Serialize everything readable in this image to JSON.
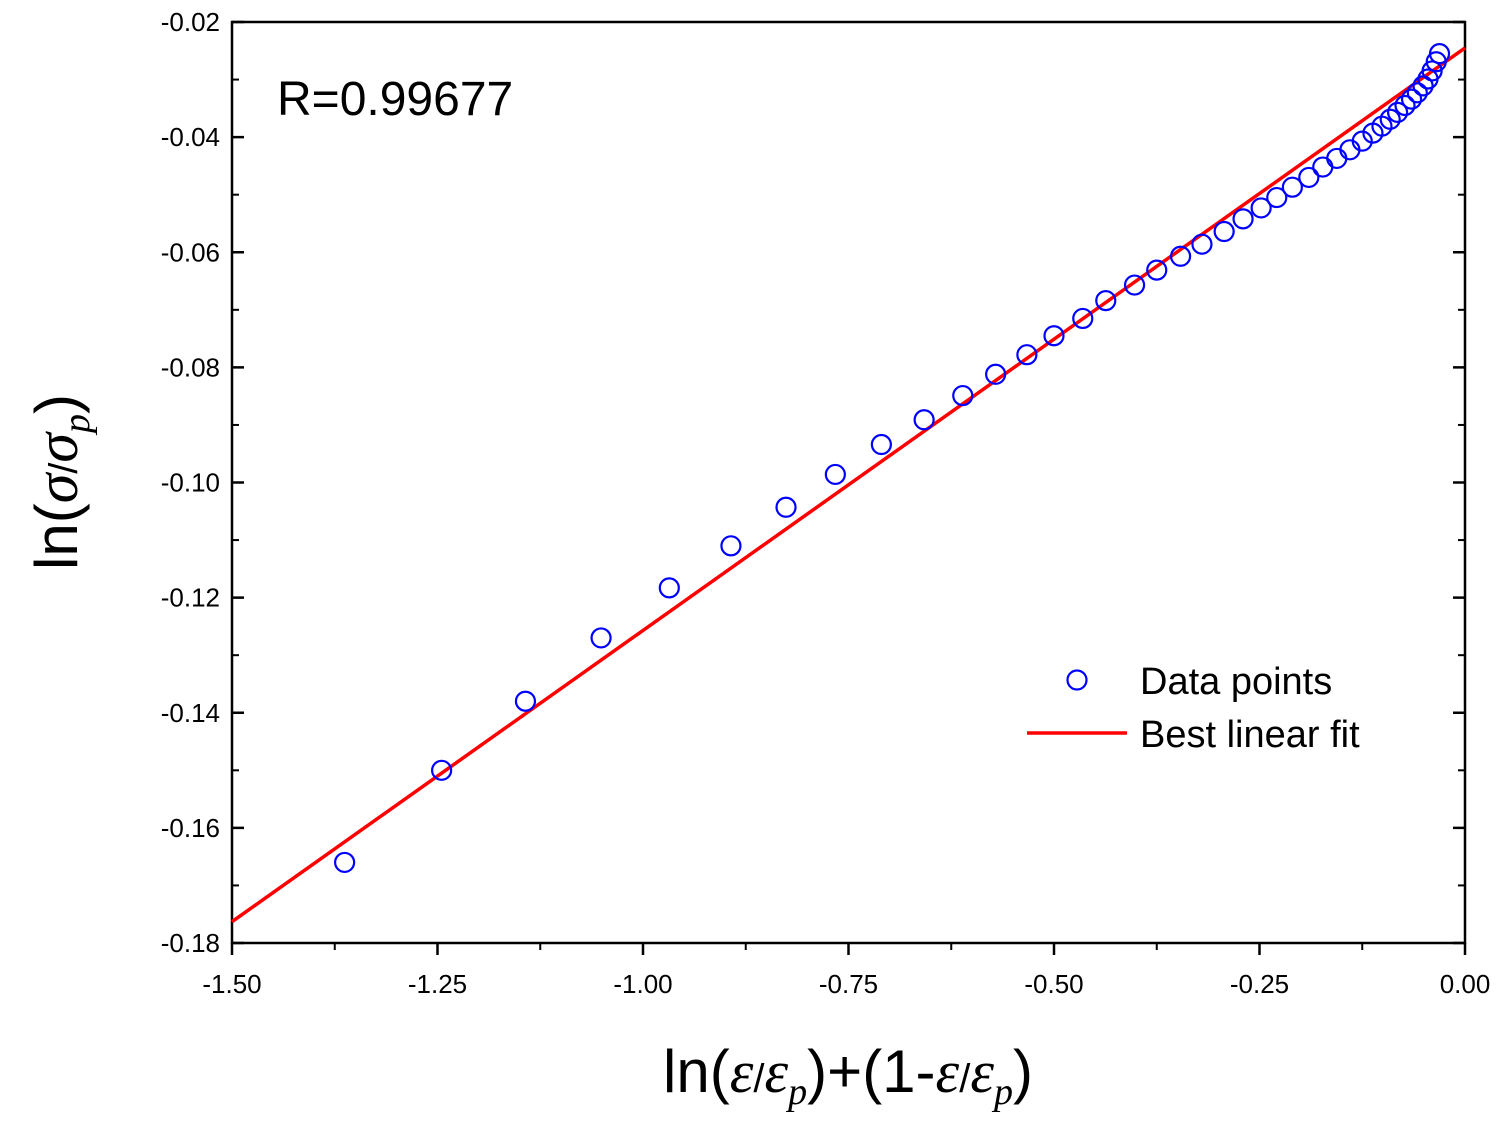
{
  "chart_data": {
    "type": "scatter",
    "xlabel": {
      "pre": "ln(",
      "v1": "ε",
      "slash1": "/",
      "v2": "ε",
      "sub2": "p",
      "mid": ")+(1-",
      "v3": "ε",
      "slash2": "/",
      "v4": "ε",
      "sub4": "p",
      "post": ")"
    },
    "ylabel": {
      "pre": "ln(",
      "v1": "σ",
      "slash": "/",
      "v2": "σ",
      "sub": "p",
      "post": ")"
    },
    "xlim": [
      -1.5,
      0.0
    ],
    "ylim": [
      -0.18,
      -0.02
    ],
    "xticks": [
      -1.5,
      -1.25,
      -1.0,
      -0.75,
      -0.5,
      -0.25,
      0.0
    ],
    "xtick_labels": [
      "-1.50",
      "-1.25",
      "-1.00",
      "-0.75",
      "-0.50",
      "-0.25",
      "0.00"
    ],
    "yticks": [
      -0.18,
      -0.16,
      -0.14,
      -0.12,
      -0.1,
      -0.08,
      -0.06,
      -0.04,
      -0.02
    ],
    "ytick_labels": [
      "-0.18",
      "-0.16",
      "-0.14",
      "-0.12",
      "-0.10",
      "-0.08",
      "-0.06",
      "-0.04",
      "-0.02"
    ],
    "annotation": "R=0.99677",
    "legend": {
      "position": "right",
      "entries": [
        "Data points",
        "Best linear fit"
      ]
    },
    "colors": {
      "points": "#0000ff",
      "fit": "#ff0000",
      "axis": "#000000"
    },
    "series": [
      {
        "name": "Data points",
        "type": "scatter",
        "x": [
          -1.363,
          -1.245,
          -1.143,
          -1.051,
          -0.968,
          -0.893,
          -0.826,
          -0.766,
          -0.71,
          -0.658,
          -0.611,
          -0.571,
          -0.533,
          -0.5,
          -0.465,
          -0.437,
          -0.402,
          -0.375,
          -0.346,
          -0.32,
          -0.293,
          -0.27,
          -0.248,
          -0.229,
          -0.21,
          -0.19,
          -0.173,
          -0.156,
          -0.14,
          -0.125,
          -0.112,
          -0.101,
          -0.091,
          -0.082,
          -0.073,
          -0.065,
          -0.058,
          -0.051,
          -0.045,
          -0.04,
          -0.035,
          -0.031
        ],
        "y": [
          -0.166,
          -0.15,
          -0.138,
          -0.127,
          -0.1183,
          -0.111,
          -0.1043,
          -0.0986,
          -0.0934,
          -0.0891,
          -0.0849,
          -0.0812,
          -0.0778,
          -0.0745,
          -0.0715,
          -0.0684,
          -0.0657,
          -0.0631,
          -0.0607,
          -0.0586,
          -0.0564,
          -0.0542,
          -0.0523,
          -0.0505,
          -0.0487,
          -0.047,
          -0.0452,
          -0.0437,
          -0.0422,
          -0.0407,
          -0.0393,
          -0.0381,
          -0.0369,
          -0.0357,
          -0.0345,
          -0.0334,
          -0.0323,
          -0.0311,
          -0.0299,
          -0.0285,
          -0.0269,
          -0.0255
        ]
      },
      {
        "name": "Best linear fit",
        "type": "line",
        "x": [
          -1.5,
          0.0
        ],
        "y": [
          -0.1763,
          -0.0245
        ]
      }
    ]
  }
}
